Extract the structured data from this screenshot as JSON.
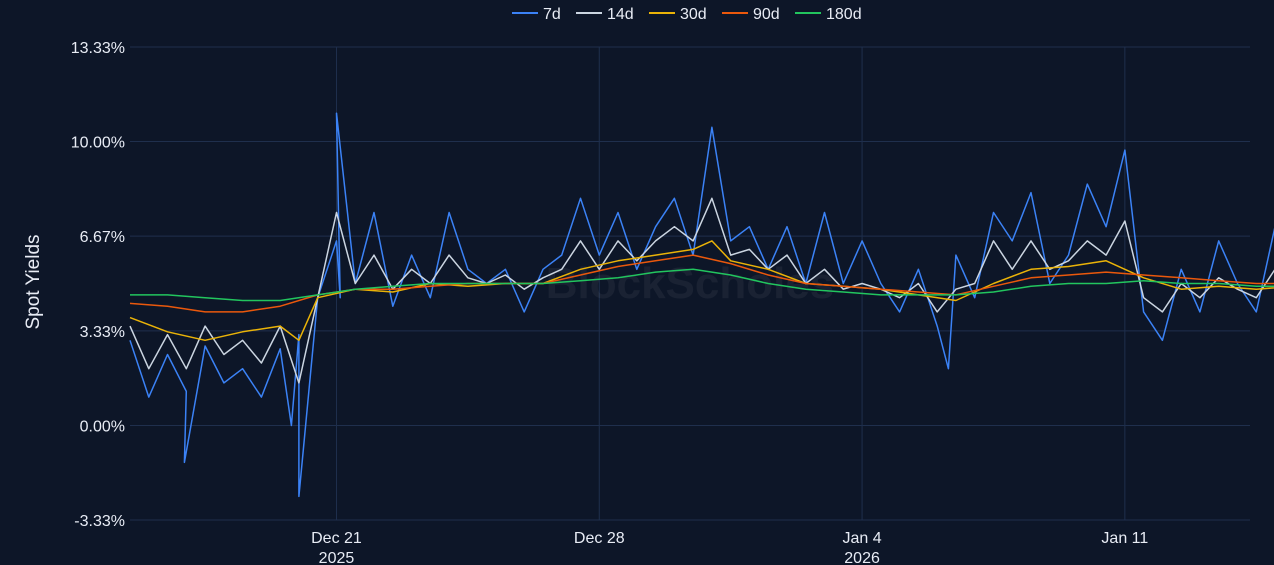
{
  "watermark": "BlockScholes",
  "chart_data": {
    "type": "line",
    "title": "",
    "ylabel": "Spot Yields",
    "xlabel": "",
    "ylim": [
      -3.33,
      13.33
    ],
    "xlim": [
      "2025-12-15T12:00",
      "2026-01-14T08:00"
    ],
    "y_ticks": [
      -3.33,
      0.0,
      3.33,
      6.67,
      10.0,
      13.33
    ],
    "y_tick_labels": [
      "-3.33%",
      "0.00%",
      "3.33%",
      "6.67%",
      "10.00%",
      "13.33%"
    ],
    "x_ticks": [
      {
        "x": "2025-12-21",
        "label": "Dec 21",
        "sublabel": "2025"
      },
      {
        "x": "2025-12-28",
        "label": "Dec 28",
        "sublabel": ""
      },
      {
        "x": "2026-01-04",
        "label": "Jan 4",
        "sublabel": "2026"
      },
      {
        "x": "2026-01-11",
        "label": "Jan 11",
        "sublabel": ""
      }
    ],
    "grid": true,
    "legend_position": "top-center",
    "series": [
      {
        "name": "7d",
        "color": "#3b82f6",
        "values": [
          [
            0.0,
            3.0
          ],
          [
            0.5,
            1.0
          ],
          [
            1.0,
            2.5
          ],
          [
            1.5,
            1.2
          ],
          [
            1.45,
            -1.3
          ],
          [
            2.0,
            2.8
          ],
          [
            2.5,
            1.5
          ],
          [
            3.0,
            2.0
          ],
          [
            3.5,
            1.0
          ],
          [
            4.0,
            2.7
          ],
          [
            4.3,
            0.0
          ],
          [
            4.5,
            3.2
          ],
          [
            4.5,
            -2.5
          ],
          [
            5.0,
            4.5
          ],
          [
            5.5,
            6.5
          ],
          [
            5.6,
            4.5
          ],
          [
            5.5,
            11.0
          ],
          [
            6.0,
            5.0
          ],
          [
            6.5,
            7.5
          ],
          [
            7.0,
            4.2
          ],
          [
            7.5,
            6.0
          ],
          [
            8.0,
            4.5
          ],
          [
            8.5,
            7.5
          ],
          [
            9.0,
            5.5
          ],
          [
            9.5,
            5.0
          ],
          [
            10.0,
            5.5
          ],
          [
            10.5,
            4.0
          ],
          [
            11.0,
            5.5
          ],
          [
            11.5,
            6.0
          ],
          [
            12.0,
            8.0
          ],
          [
            12.5,
            6.0
          ],
          [
            13.0,
            7.5
          ],
          [
            13.5,
            5.5
          ],
          [
            14.0,
            7.0
          ],
          [
            14.5,
            8.0
          ],
          [
            15.0,
            6.0
          ],
          [
            15.5,
            10.5
          ],
          [
            16.0,
            6.5
          ],
          [
            16.5,
            7.0
          ],
          [
            17.0,
            5.5
          ],
          [
            17.5,
            7.0
          ],
          [
            18.0,
            5.0
          ],
          [
            18.5,
            7.5
          ],
          [
            19.0,
            5.0
          ],
          [
            19.5,
            6.5
          ],
          [
            20.0,
            5.0
          ],
          [
            20.5,
            4.0
          ],
          [
            21.0,
            5.5
          ],
          [
            21.5,
            3.5
          ],
          [
            21.8,
            2.0
          ],
          [
            22.0,
            6.0
          ],
          [
            22.5,
            4.5
          ],
          [
            23.0,
            7.5
          ],
          [
            23.5,
            6.5
          ],
          [
            24.0,
            8.2
          ],
          [
            24.5,
            5.0
          ],
          [
            25.0,
            6.0
          ],
          [
            25.5,
            8.5
          ],
          [
            26.0,
            7.0
          ],
          [
            26.5,
            9.7
          ],
          [
            27.0,
            4.0
          ],
          [
            27.5,
            3.0
          ],
          [
            28.0,
            5.5
          ],
          [
            28.5,
            4.0
          ],
          [
            29.0,
            6.5
          ],
          [
            29.5,
            5.0
          ],
          [
            30.0,
            4.0
          ],
          [
            30.5,
            7.0
          ],
          [
            31.0,
            5.5
          ],
          [
            31.5,
            3.5
          ],
          [
            32.0,
            7.0
          ],
          [
            32.5,
            4.5
          ],
          [
            33.0,
            5.5
          ],
          [
            33.5,
            6.0
          ],
          [
            34.0,
            5.0
          ],
          [
            34.5,
            6.5
          ],
          [
            35.0,
            7.5
          ],
          [
            35.5,
            6.0
          ],
          [
            36.0,
            8.0
          ],
          [
            36.5,
            4.5
          ],
          [
            37.0,
            6.0
          ],
          [
            37.5,
            6.5
          ],
          [
            37.8,
            6.3
          ]
        ]
      },
      {
        "name": "14d",
        "color": "#cbd5e1",
        "values": [
          [
            0.0,
            3.5
          ],
          [
            0.5,
            2.0
          ],
          [
            1.0,
            3.2
          ],
          [
            1.5,
            2.0
          ],
          [
            2.0,
            3.5
          ],
          [
            2.5,
            2.5
          ],
          [
            3.0,
            3.0
          ],
          [
            3.5,
            2.2
          ],
          [
            4.0,
            3.5
          ],
          [
            4.5,
            1.5
          ],
          [
            5.0,
            4.5
          ],
          [
            5.5,
            7.5
          ],
          [
            6.0,
            5.0
          ],
          [
            6.5,
            6.0
          ],
          [
            7.0,
            4.8
          ],
          [
            7.5,
            5.5
          ],
          [
            8.0,
            5.0
          ],
          [
            8.5,
            6.0
          ],
          [
            9.0,
            5.2
          ],
          [
            9.5,
            5.0
          ],
          [
            10.0,
            5.3
          ],
          [
            10.5,
            4.8
          ],
          [
            11.0,
            5.2
          ],
          [
            11.5,
            5.5
          ],
          [
            12.0,
            6.5
          ],
          [
            12.5,
            5.5
          ],
          [
            13.0,
            6.5
          ],
          [
            13.5,
            5.8
          ],
          [
            14.0,
            6.5
          ],
          [
            14.5,
            7.0
          ],
          [
            15.0,
            6.5
          ],
          [
            15.5,
            8.0
          ],
          [
            16.0,
            6.0
          ],
          [
            16.5,
            6.2
          ],
          [
            17.0,
            5.5
          ],
          [
            17.5,
            6.0
          ],
          [
            18.0,
            5.0
          ],
          [
            18.5,
            5.5
          ],
          [
            19.0,
            4.8
          ],
          [
            19.5,
            5.0
          ],
          [
            20.0,
            4.8
          ],
          [
            20.5,
            4.5
          ],
          [
            21.0,
            5.0
          ],
          [
            21.5,
            4.0
          ],
          [
            22.0,
            4.8
          ],
          [
            22.5,
            5.0
          ],
          [
            23.0,
            6.5
          ],
          [
            23.5,
            5.5
          ],
          [
            24.0,
            6.5
          ],
          [
            24.5,
            5.5
          ],
          [
            25.0,
            5.8
          ],
          [
            25.5,
            6.5
          ],
          [
            26.0,
            6.0
          ],
          [
            26.5,
            7.2
          ],
          [
            27.0,
            4.5
          ],
          [
            27.5,
            4.0
          ],
          [
            28.0,
            5.0
          ],
          [
            28.5,
            4.5
          ],
          [
            29.0,
            5.2
          ],
          [
            29.5,
            4.8
          ],
          [
            30.0,
            4.5
          ],
          [
            30.5,
            5.5
          ],
          [
            31.0,
            5.0
          ],
          [
            31.5,
            4.2
          ],
          [
            32.0,
            5.5
          ],
          [
            32.5,
            4.8
          ],
          [
            33.0,
            5.0
          ],
          [
            33.5,
            5.5
          ],
          [
            34.0,
            5.0
          ],
          [
            34.5,
            5.8
          ],
          [
            35.0,
            6.0
          ],
          [
            35.5,
            5.5
          ],
          [
            36.0,
            6.5
          ],
          [
            36.5,
            5.0
          ],
          [
            37.0,
            5.8
          ],
          [
            37.5,
            6.2
          ],
          [
            37.8,
            5.9
          ]
        ]
      },
      {
        "name": "30d",
        "color": "#eab308",
        "values": [
          [
            0.0,
            3.8
          ],
          [
            1.0,
            3.3
          ],
          [
            2.0,
            3.0
          ],
          [
            3.0,
            3.3
          ],
          [
            4.0,
            3.5
          ],
          [
            4.5,
            3.0
          ],
          [
            5.0,
            4.5
          ],
          [
            6.0,
            4.8
          ],
          [
            7.0,
            4.7
          ],
          [
            8.0,
            5.0
          ],
          [
            9.0,
            4.9
          ],
          [
            10.0,
            5.0
          ],
          [
            11.0,
            5.0
          ],
          [
            12.0,
            5.5
          ],
          [
            13.0,
            5.8
          ],
          [
            14.0,
            6.0
          ],
          [
            15.0,
            6.2
          ],
          [
            15.5,
            6.5
          ],
          [
            16.0,
            5.8
          ],
          [
            17.0,
            5.5
          ],
          [
            18.0,
            5.0
          ],
          [
            19.0,
            4.9
          ],
          [
            20.0,
            4.8
          ],
          [
            21.0,
            4.6
          ],
          [
            22.0,
            4.4
          ],
          [
            23.0,
            5.0
          ],
          [
            24.0,
            5.5
          ],
          [
            25.0,
            5.6
          ],
          [
            26.0,
            5.8
          ],
          [
            27.0,
            5.2
          ],
          [
            28.0,
            4.8
          ],
          [
            29.0,
            4.9
          ],
          [
            30.0,
            4.8
          ],
          [
            31.0,
            4.9
          ],
          [
            32.0,
            5.0
          ],
          [
            33.0,
            5.0
          ],
          [
            34.0,
            5.2
          ],
          [
            35.0,
            5.3
          ],
          [
            36.0,
            5.5
          ],
          [
            37.0,
            5.2
          ],
          [
            37.8,
            5.1
          ]
        ]
      },
      {
        "name": "90d",
        "color": "#ea580c",
        "values": [
          [
            0.0,
            4.3
          ],
          [
            1.0,
            4.2
          ],
          [
            2.0,
            4.0
          ],
          [
            3.0,
            4.0
          ],
          [
            4.0,
            4.2
          ],
          [
            5.0,
            4.6
          ],
          [
            6.0,
            4.8
          ],
          [
            7.0,
            4.8
          ],
          [
            8.0,
            4.9
          ],
          [
            9.0,
            5.0
          ],
          [
            10.0,
            5.0
          ],
          [
            11.0,
            5.0
          ],
          [
            12.0,
            5.3
          ],
          [
            13.0,
            5.6
          ],
          [
            14.0,
            5.8
          ],
          [
            15.0,
            6.0
          ],
          [
            16.0,
            5.7
          ],
          [
            17.0,
            5.3
          ],
          [
            18.0,
            5.0
          ],
          [
            19.0,
            4.9
          ],
          [
            20.0,
            4.8
          ],
          [
            21.0,
            4.7
          ],
          [
            22.0,
            4.6
          ],
          [
            23.0,
            4.9
          ],
          [
            24.0,
            5.2
          ],
          [
            25.0,
            5.3
          ],
          [
            26.0,
            5.4
          ],
          [
            27.0,
            5.3
          ],
          [
            28.0,
            5.2
          ],
          [
            29.0,
            5.1
          ],
          [
            30.0,
            5.0
          ],
          [
            31.0,
            5.0
          ],
          [
            32.0,
            5.0
          ],
          [
            33.0,
            5.0
          ],
          [
            34.0,
            5.1
          ],
          [
            35.0,
            5.1
          ],
          [
            36.0,
            5.2
          ],
          [
            37.0,
            5.2
          ],
          [
            37.8,
            5.2
          ]
        ]
      },
      {
        "name": "180d",
        "color": "#22c55e",
        "values": [
          [
            0.0,
            4.6
          ],
          [
            1.0,
            4.6
          ],
          [
            2.0,
            4.5
          ],
          [
            3.0,
            4.4
          ],
          [
            4.0,
            4.4
          ],
          [
            5.0,
            4.6
          ],
          [
            6.0,
            4.8
          ],
          [
            7.0,
            4.9
          ],
          [
            8.0,
            5.0
          ],
          [
            9.0,
            5.0
          ],
          [
            10.0,
            5.0
          ],
          [
            11.0,
            5.0
          ],
          [
            12.0,
            5.1
          ],
          [
            13.0,
            5.2
          ],
          [
            14.0,
            5.4
          ],
          [
            15.0,
            5.5
          ],
          [
            16.0,
            5.3
          ],
          [
            17.0,
            5.0
          ],
          [
            18.0,
            4.8
          ],
          [
            19.0,
            4.7
          ],
          [
            20.0,
            4.6
          ],
          [
            21.0,
            4.6
          ],
          [
            22.0,
            4.6
          ],
          [
            23.0,
            4.7
          ],
          [
            24.0,
            4.9
          ],
          [
            25.0,
            5.0
          ],
          [
            26.0,
            5.0
          ],
          [
            27.0,
            5.1
          ],
          [
            28.0,
            5.0
          ],
          [
            29.0,
            5.0
          ],
          [
            30.0,
            4.9
          ],
          [
            31.0,
            4.9
          ],
          [
            32.0,
            4.9
          ],
          [
            33.0,
            4.9
          ],
          [
            34.0,
            5.0
          ],
          [
            35.0,
            5.1
          ],
          [
            36.0,
            5.2
          ],
          [
            37.0,
            5.3
          ],
          [
            37.8,
            5.3
          ]
        ]
      }
    ]
  }
}
